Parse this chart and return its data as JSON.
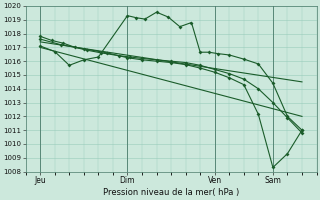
{
  "xlabel": "Pression niveau de la mer( hPa )",
  "ylim": [
    1008,
    1020
  ],
  "yticks": [
    1008,
    1009,
    1010,
    1011,
    1012,
    1013,
    1014,
    1015,
    1016,
    1017,
    1018,
    1019,
    1020
  ],
  "bg_color": "#cce8dc",
  "grid_color": "#99ccbb",
  "line_color": "#1a5c2a",
  "xtick_labels": [
    "Jeu",
    "Dim",
    "Ven",
    "Sam"
  ],
  "xtick_positions": [
    0.5,
    3.5,
    6.5,
    8.5
  ],
  "xlim": [
    0.0,
    10.0
  ],
  "series1_x": [
    0.5,
    1.0,
    1.5,
    2.0,
    2.5,
    3.5,
    3.8,
    4.1,
    4.5,
    4.9,
    5.3,
    5.7,
    6.0,
    6.3,
    6.6,
    7.0,
    7.5,
    8.0,
    8.5,
    9.0,
    9.5
  ],
  "series1_y": [
    1017.1,
    1016.7,
    1015.7,
    1016.1,
    1016.3,
    1019.3,
    1019.15,
    1019.05,
    1019.55,
    1019.2,
    1018.5,
    1018.8,
    1016.65,
    1016.65,
    1016.55,
    1016.45,
    1016.15,
    1015.8,
    1014.4,
    1012.0,
    1011.0
  ],
  "series2_x": [
    0.5,
    0.9,
    1.3,
    1.7,
    2.1,
    2.6,
    3.2,
    3.6,
    4.0,
    4.5,
    5.0,
    5.5,
    6.0,
    6.5,
    7.0,
    7.5,
    8.0,
    8.5,
    9.0,
    9.5
  ],
  "series2_y": [
    1017.8,
    1017.5,
    1017.3,
    1017.0,
    1016.8,
    1016.6,
    1016.4,
    1016.3,
    1016.2,
    1016.1,
    1016.0,
    1015.9,
    1015.7,
    1015.4,
    1015.1,
    1014.7,
    1014.0,
    1013.0,
    1011.9,
    1010.8
  ],
  "series3_x": [
    0.5,
    9.5
  ],
  "series3_y": [
    1017.4,
    1014.5
  ],
  "series4_x": [
    0.5,
    9.5
  ],
  "series4_y": [
    1017.0,
    1012.0
  ],
  "series5_x": [
    0.5,
    1.2,
    2.0,
    2.8,
    3.5,
    4.0,
    4.5,
    5.0,
    5.5,
    6.0,
    6.5,
    7.0,
    7.5,
    8.0,
    8.5,
    9.0,
    9.5
  ],
  "series5_y": [
    1017.6,
    1017.2,
    1016.9,
    1016.6,
    1016.25,
    1016.1,
    1016.0,
    1015.9,
    1015.75,
    1015.5,
    1015.2,
    1014.8,
    1014.3,
    1012.15,
    1008.3,
    1009.3,
    1011.0
  ]
}
